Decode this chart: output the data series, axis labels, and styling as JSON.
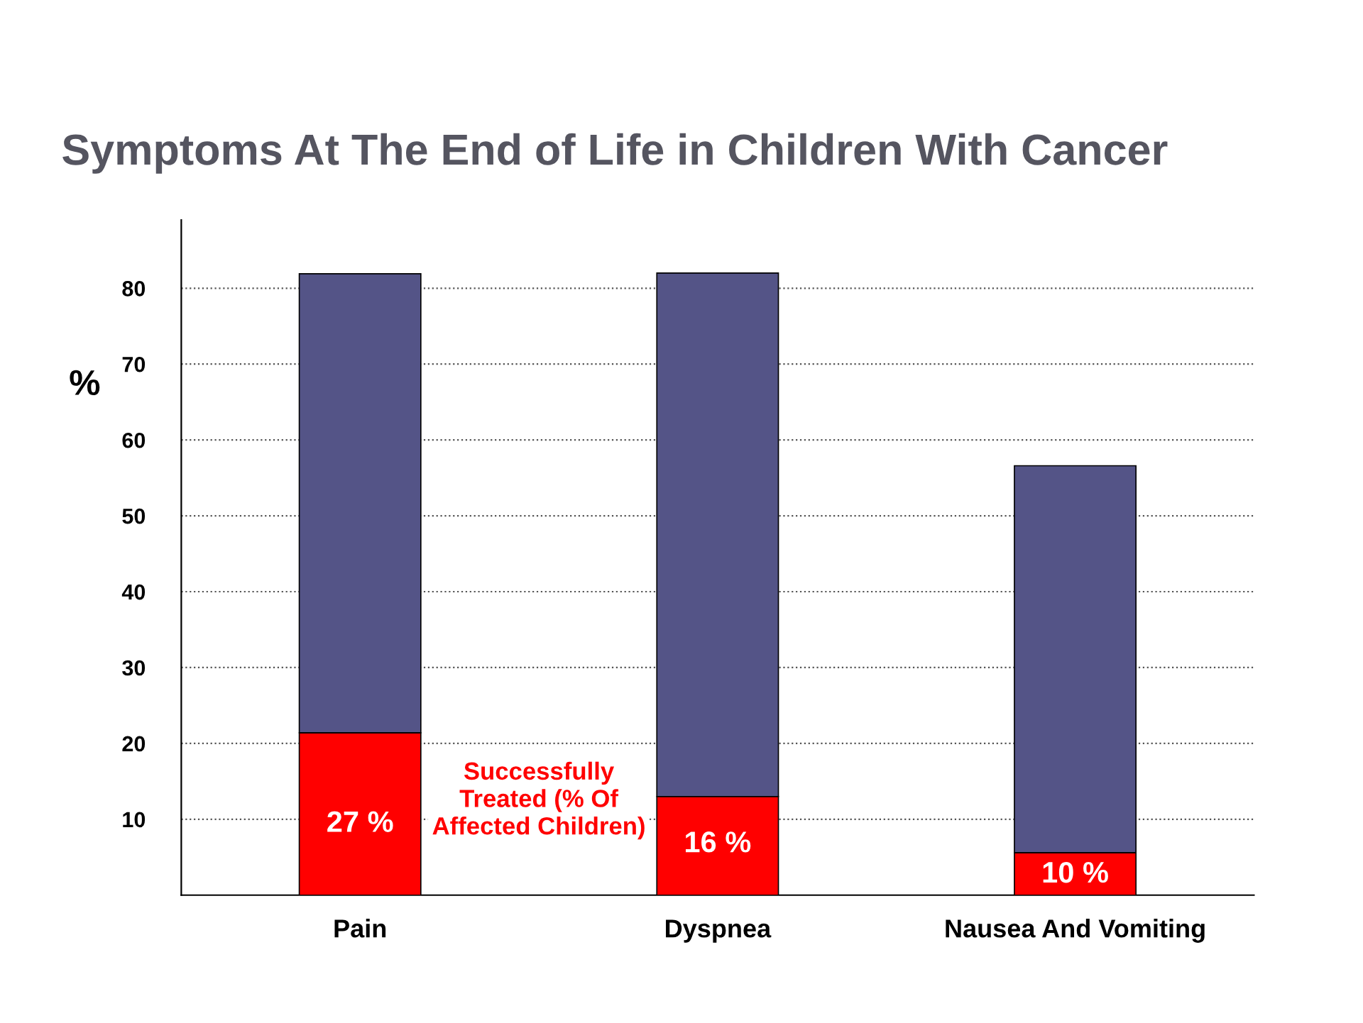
{
  "chart_data": {
    "type": "bar",
    "title": "Symptoms At The End of Life in Children With Cancer",
    "ylabel": "%",
    "categories": [
      "Pain",
      "Dyspnea",
      "Nausea And Vomiting"
    ],
    "stacked": true,
    "series": [
      {
        "color": "#ff0000",
        "values": [
          21.4,
          13,
          5.6
        ]
      },
      {
        "color": "#545487",
        "values": [
          60.5,
          69,
          51
        ]
      }
    ],
    "ylim": [
      0,
      89
    ],
    "yticks": [
      10,
      20,
      30,
      40,
      50,
      60,
      70,
      80
    ],
    "grid": "y",
    "annotations": [
      "27 %",
      "16 %",
      "10 %",
      "Successfully Treated (% Of Affected Children)"
    ]
  }
}
